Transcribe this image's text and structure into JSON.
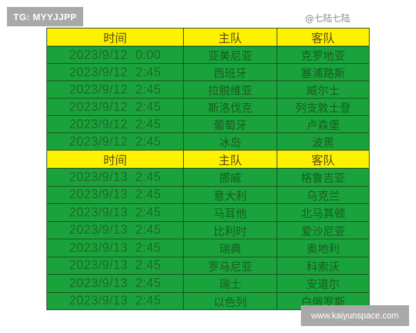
{
  "badges": {
    "top_left": "TG: MYYJJPP",
    "bottom_right": "www.kaiyunspace.com"
  },
  "watermark": "@七陆七陆",
  "colors": {
    "header_bg": "#fff200",
    "row_bg": "#1aa33c",
    "badge_bg": "#a9a9a9"
  },
  "sections": [
    {
      "headers": [
        "时间",
        "主队",
        "客队"
      ],
      "rows": [
        [
          "2023/9/12  0:00",
          "亚美尼亚",
          "克罗地亚"
        ],
        [
          "2023/9/12  2:45",
          "西班牙",
          "塞浦路斯"
        ],
        [
          "2023/9/12  2:45",
          "拉脱维亚",
          "威尔士"
        ],
        [
          "2023/9/12  2:45",
          "斯洛伐克",
          "列支敦士登"
        ],
        [
          "2023/9/12  2:45",
          "葡萄牙",
          "卢森堡"
        ],
        [
          "2023/9/12  2:45",
          "冰岛",
          "波黑"
        ]
      ]
    },
    {
      "headers": [
        "时间",
        "主队",
        "客队"
      ],
      "rows": [
        [
          "2023/9/13  2:45",
          "挪威",
          "格鲁吉亚"
        ],
        [
          "2023/9/13  2:45",
          "意大利",
          "乌克兰"
        ],
        [
          "2023/9/13  2:45",
          "马耳他",
          "北马其顿"
        ],
        [
          "2023/9/13  2:45",
          "比利时",
          "爱沙尼亚"
        ],
        [
          "2023/9/13  2:45",
          "瑞典",
          "奥地利"
        ],
        [
          "2023/9/13  2:45",
          "罗马尼亚",
          "科索沃"
        ],
        [
          "2023/9/13  2:45",
          "瑞士",
          "安道尔"
        ],
        [
          "2023/9/13  2:45",
          "以色列",
          "白俄罗斯"
        ]
      ]
    }
  ]
}
